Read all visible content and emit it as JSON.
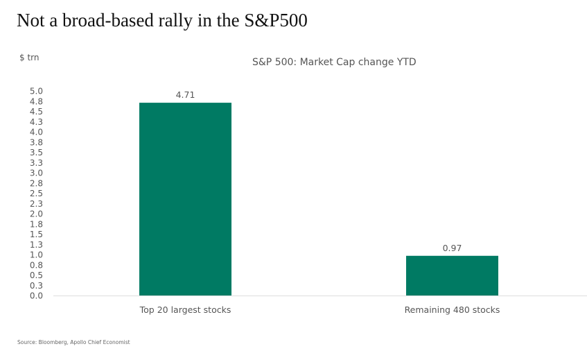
{
  "header": {
    "title": "Not a broad-based rally in the S&P500",
    "source": "Source: Bloomberg, Apollo Chief Economist"
  },
  "chart_data": {
    "type": "bar",
    "title": "S&P 500: Market Cap change YTD",
    "ylabel": "$ trn",
    "xlabel": "",
    "categories": [
      "Top 20 largest stocks",
      "Remaining 480 stocks"
    ],
    "values": [
      4.71,
      0.97
    ],
    "data_labels": [
      "4.71",
      "0.97"
    ],
    "ylim": [
      0,
      5.0
    ],
    "yticks": [
      0,
      0.25,
      0.5,
      0.75,
      1.0,
      1.25,
      1.5,
      1.75,
      2.0,
      2.25,
      2.5,
      2.75,
      3.0,
      3.25,
      3.5,
      3.75,
      4.0,
      4.25,
      4.5,
      4.75,
      5.0
    ],
    "ytick_labels": [
      "0.0",
      "0.3",
      "0.5",
      "0.8",
      "1.0",
      "1.3",
      "1.5",
      "1.8",
      "2.0",
      "2.3",
      "2.5",
      "2.8",
      "3.0",
      "3.3",
      "3.5",
      "3.8",
      "4.0",
      "4.3",
      "4.5",
      "4.8",
      "5.0"
    ],
    "grid": false,
    "legend": "none",
    "colors": {
      "bar": "#007A63",
      "axis": "#e2e2e2",
      "text": "#555555"
    }
  }
}
